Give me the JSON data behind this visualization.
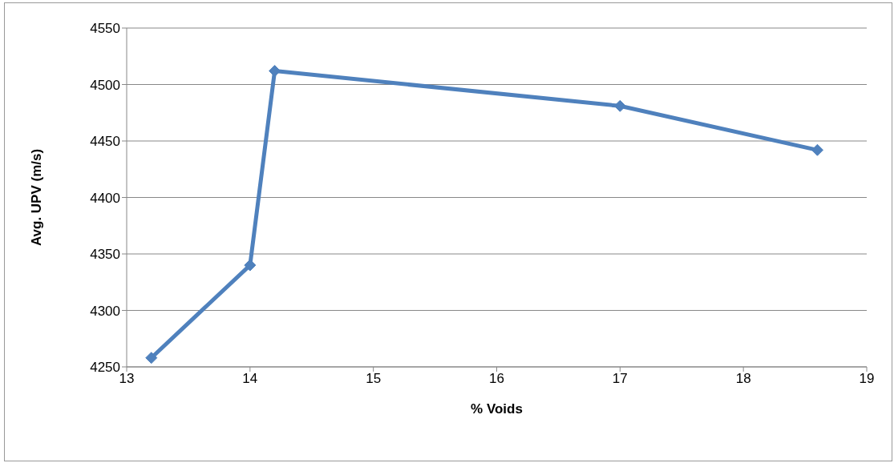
{
  "chart_data": {
    "type": "line",
    "xlabel": "% Voids",
    "ylabel": "Avg. UPV (m/s)",
    "x": [
      13.2,
      14.0,
      14.2,
      17.0,
      18.6
    ],
    "series": [
      {
        "color": "#4f81bd",
        "values": [
          4258,
          4340,
          4512,
          4481,
          4442
        ]
      }
    ],
    "xlim": [
      13,
      19
    ],
    "xticks": [
      13,
      14,
      15,
      16,
      17,
      18,
      19
    ],
    "ylim": [
      4250,
      4550
    ],
    "yticks": [
      4250,
      4300,
      4350,
      4400,
      4450,
      4500,
      4550
    ],
    "grid": "y",
    "legend": false,
    "marker": "diamond",
    "line_style": "solid"
  }
}
